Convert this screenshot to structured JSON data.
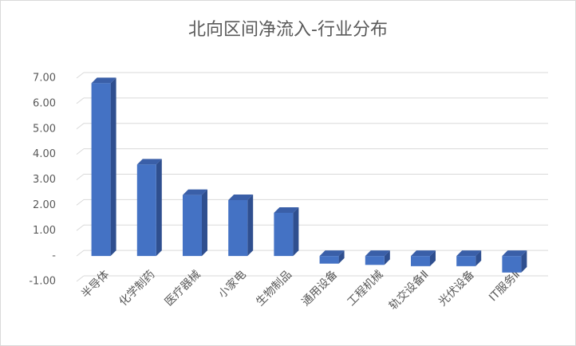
{
  "chart_data": {
    "type": "bar3d",
    "title": "北向区间净流入-行业分布",
    "categories": [
      "半导体",
      "化学制药",
      "医疗器械",
      "小家电",
      "生物制品",
      "通用设备",
      "工程机械",
      "轨交设备Ⅱ",
      "光伏设备",
      "IT服务Ⅱ"
    ],
    "values": [
      6.8,
      3.6,
      2.4,
      2.2,
      1.7,
      -0.3,
      -0.35,
      -0.4,
      -0.4,
      -0.65
    ],
    "color": "#4472c4",
    "ylim": [
      -1,
      7
    ],
    "yticks": [
      {
        "value": -1,
        "label": "-1.00"
      },
      {
        "value": 0,
        "label": "-"
      },
      {
        "value": 1,
        "label": "1.00"
      },
      {
        "value": 2,
        "label": "2.00"
      },
      {
        "value": 3,
        "label": "3.00"
      },
      {
        "value": 4,
        "label": "4.00"
      },
      {
        "value": 5,
        "label": "5.00"
      },
      {
        "value": 6,
        "label": "6.00"
      },
      {
        "value": 7,
        "label": "7.00"
      }
    ],
    "grid": true
  }
}
